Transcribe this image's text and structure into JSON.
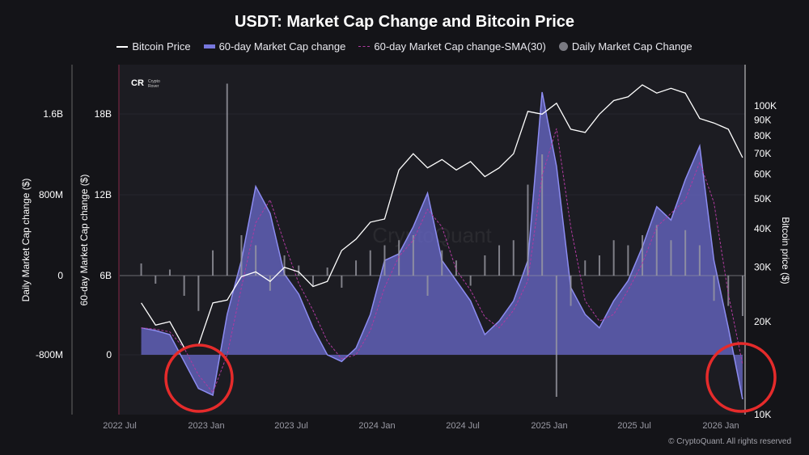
{
  "chart_data": {
    "type": "line",
    "title": "USDT: Market Cap Change and Bitcoin Price",
    "legend": [
      "Bitcoin Price",
      "60-day Market Cap change",
      "60-day Market Cap change-SMA(30)",
      "Daily Market Cap Change"
    ],
    "legend_placement": "top",
    "axes": {
      "left_outer": {
        "label": "Daily Market Cap change ($)",
        "ticks": [
          "1.6B",
          "800M",
          "0",
          "-800M"
        ],
        "range_millions": [
          -1600,
          2400
        ]
      },
      "left_inner": {
        "label": "60-day Market Cap change ($)",
        "ticks": [
          "18B",
          "12B",
          "6B",
          "0"
        ],
        "range_billions": [
          -4.5,
          21.6
        ]
      },
      "right": {
        "label": "Bitcoin price ($)",
        "scale": "log",
        "ticks": [
          "100K",
          "90K",
          "80K",
          "70K",
          "60K",
          "50K",
          "40K",
          "30K",
          "20K",
          "10K"
        ],
        "range_thousands": [
          10,
          110
        ]
      },
      "x_ticks": [
        "2022 Jul",
        "2023 Jan",
        "2023 Jul",
        "2024 Jan",
        "2024 Jul",
        "2025 Jan",
        "2025 Jul",
        "2026 Jan"
      ]
    },
    "x": [
      "2022-08",
      "2022-09",
      "2022-10",
      "2022-11",
      "2022-12",
      "2023-01",
      "2023-02",
      "2023-03",
      "2023-04",
      "2023-05",
      "2023-06",
      "2023-07",
      "2023-08",
      "2023-09",
      "2023-10",
      "2023-11",
      "2023-12",
      "2024-01",
      "2024-02",
      "2024-03",
      "2024-04",
      "2024-05",
      "2024-06",
      "2024-07",
      "2024-08",
      "2024-09",
      "2024-10",
      "2024-11",
      "2024-12",
      "2025-01",
      "2025-02",
      "2025-03",
      "2025-04",
      "2025-05",
      "2025-06",
      "2025-07",
      "2025-08",
      "2025-09",
      "2025-10",
      "2025-11",
      "2025-12",
      "2026-01",
      "2026-02"
    ],
    "series": [
      {
        "name": "Bitcoin Price",
        "unit": "K USD",
        "color": "#ffffff",
        "values": [
          23,
          19.5,
          20,
          16.5,
          16.8,
          23,
          23.5,
          28,
          29,
          27,
          30,
          29,
          26,
          27,
          34,
          37,
          42,
          43,
          62,
          70,
          63,
          67,
          62,
          66,
          59,
          63,
          70,
          96,
          94,
          102,
          84,
          82,
          94,
          104,
          107,
          117,
          110,
          114,
          110,
          91,
          88,
          84,
          68
        ]
      },
      {
        "name": "60-day Market Cap change",
        "unit": "B USD",
        "color": "#7777dd",
        "values": [
          2.0,
          1.8,
          1.5,
          -0.5,
          -2.5,
          -3.0,
          3.0,
          7.0,
          12.5,
          10.5,
          6.0,
          4.5,
          2.0,
          0.0,
          -0.5,
          0.5,
          3.0,
          7.0,
          7.5,
          9.5,
          12.0,
          7.0,
          5.5,
          4.0,
          1.5,
          2.5,
          4.0,
          7.0,
          19.5,
          14.0,
          5.0,
          3.0,
          2.0,
          4.0,
          5.5,
          8.0,
          11.0,
          10.0,
          13.0,
          15.5,
          7.0,
          2.0,
          -3.3
        ]
      },
      {
        "name": "60-day Market Cap change-SMA(30)",
        "unit": "B USD",
        "color": "#b03aa0",
        "values": [
          2.0,
          1.9,
          1.7,
          0.5,
          -1.5,
          -2.8,
          0.0,
          5.0,
          9.8,
          11.5,
          8.3,
          5.3,
          3.3,
          1.0,
          -0.3,
          0.0,
          1.8,
          5.0,
          7.3,
          8.5,
          10.8,
          9.5,
          6.3,
          4.8,
          2.8,
          2.0,
          3.3,
          5.5,
          13.3,
          16.8,
          9.5,
          4.0,
          2.5,
          3.0,
          4.8,
          6.8,
          9.5,
          10.5,
          11.5,
          14.3,
          11.3,
          4.5,
          -0.7
        ]
      },
      {
        "name": "Daily Market Cap Change",
        "unit": "M USD",
        "color": "#7a7a82",
        "values": [
          120,
          -80,
          60,
          -200,
          -350,
          250,
          1900,
          400,
          300,
          -150,
          200,
          100,
          -100,
          80,
          -120,
          150,
          250,
          300,
          350,
          400,
          -200,
          250,
          150,
          -100,
          200,
          300,
          350,
          900,
          1200,
          -1200,
          -300,
          150,
          200,
          350,
          300,
          400,
          500,
          350,
          450,
          300,
          -250,
          -300,
          -400
        ]
      }
    ],
    "annotations": [
      "red circle around 2023 Jan negative 60-day change",
      "red circle around 2026 Feb negative 60-day change"
    ],
    "annotation_color": "#e52b2b",
    "grid": true
  },
  "watermark": "CryptoQuant",
  "logo": "Crypto Rover",
  "copyright": "© CryptoQuant. All rights reserved"
}
